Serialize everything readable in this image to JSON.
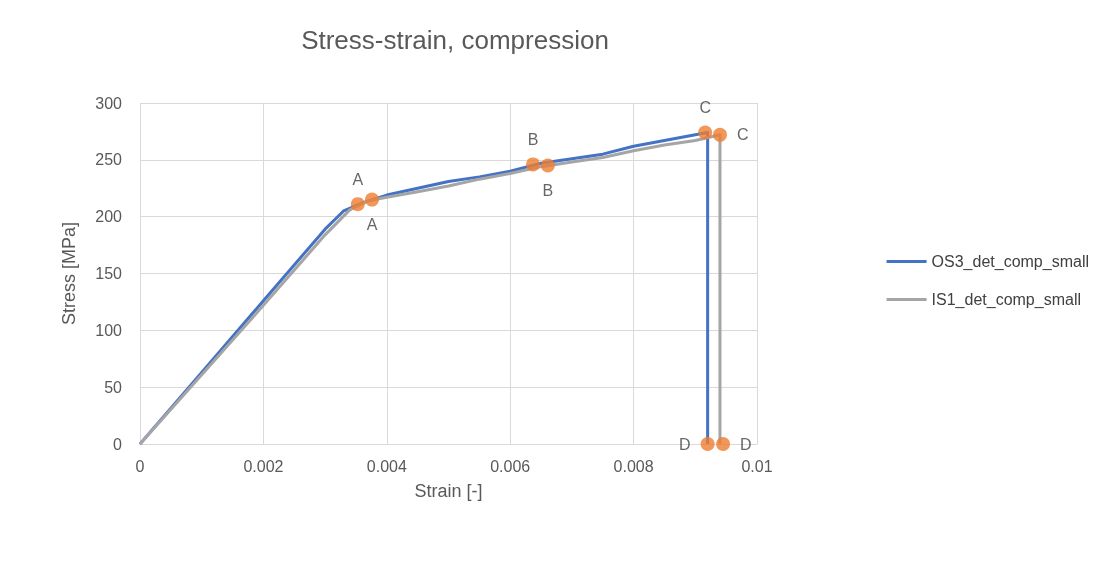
{
  "chart_data": {
    "type": "line",
    "title": "Stress-strain, compression",
    "xlabel": "Strain [-]",
    "ylabel": "Stress [MPa]",
    "xlim": [
      0,
      0.01
    ],
    "xticks": [
      0,
      0.002,
      0.004,
      0.006,
      0.008,
      0.01
    ],
    "ylim": [
      0,
      300
    ],
    "yticks": [
      0,
      50,
      100,
      150,
      200,
      250,
      300
    ],
    "grid": true,
    "legend": "right",
    "marker": "none",
    "series": [
      {
        "name": "OS3_det_comp_small",
        "color": "#4472c4",
        "x": [
          0,
          0.001,
          0.002,
          0.003,
          0.0033,
          0.0036,
          0.004,
          0.0045,
          0.005,
          0.0055,
          0.006,
          0.0065,
          0.007,
          0.0075,
          0.008,
          0.0085,
          0.009,
          0.0092,
          0.0092
        ],
        "values": [
          0,
          63,
          126,
          189,
          205,
          212,
          219,
          225,
          231,
          235,
          240,
          247,
          251,
          255,
          262,
          267,
          272,
          274,
          0
        ]
      },
      {
        "name": "IS1_det_comp_small",
        "color": "#a5a5a5",
        "x": [
          0,
          0.001,
          0.002,
          0.003,
          0.0034,
          0.0037,
          0.004,
          0.0045,
          0.005,
          0.0055,
          0.006,
          0.0065,
          0.007,
          0.0075,
          0.008,
          0.0085,
          0.009,
          0.0094,
          0.0094
        ],
        "values": [
          0,
          61,
          122,
          184,
          206,
          214,
          217,
          222,
          227,
          233,
          238,
          244,
          248,
          252,
          258,
          263,
          267,
          272,
          0
        ]
      },
      {
        "type": "scatter",
        "marker": "circle",
        "color": "#ed7d31",
        "x": [
          0.00353,
          0.00376,
          0.00637,
          0.00661,
          0.00916,
          0.0094,
          0.0092,
          0.00945
        ],
        "values": [
          211,
          215,
          246,
          245,
          274,
          272,
          0,
          0
        ],
        "value_labels": [
          "A",
          "A",
          "B",
          "B",
          "C",
          "C",
          "D",
          "D"
        ]
      }
    ]
  }
}
